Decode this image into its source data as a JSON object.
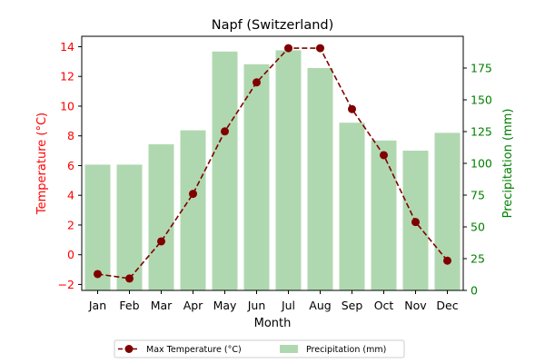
{
  "chart_data": {
    "type": "bar+line",
    "title": "Napf (Switzerland)",
    "xlabel": "Month",
    "categories": [
      "Jan",
      "Feb",
      "Mar",
      "Apr",
      "May",
      "Jun",
      "Jul",
      "Aug",
      "Sep",
      "Oct",
      "Nov",
      "Dec"
    ],
    "left_axis": {
      "label": "Temperature (°C)",
      "color": "#ff0000",
      "ylim": [
        -2.4,
        14.7
      ],
      "ticks": [
        -2,
        0,
        2,
        4,
        6,
        8,
        10,
        12,
        14
      ]
    },
    "right_axis": {
      "label": "Precipitation (mm)",
      "color": "#008000",
      "ylim": [
        0,
        200
      ],
      "ticks": [
        0,
        25,
        50,
        75,
        100,
        125,
        150,
        175
      ]
    },
    "series": [
      {
        "name": "Max Temperature (°C)",
        "kind": "line",
        "axis": "left",
        "color": "#800000",
        "line_style": "dashed",
        "marker": "circle",
        "values": [
          -1.3,
          -1.6,
          0.9,
          4.1,
          8.3,
          11.6,
          13.9,
          13.9,
          9.8,
          6.7,
          2.2,
          -0.4
        ]
      },
      {
        "name": "Precipitation (mm)",
        "kind": "bar",
        "axis": "right",
        "color": "#b0d8b0",
        "values": [
          99,
          99,
          115,
          126,
          188,
          178,
          189,
          175,
          132,
          118,
          110,
          124
        ]
      }
    ],
    "legend": {
      "position": "bottom-center",
      "columns": 2
    },
    "grid": false
  }
}
